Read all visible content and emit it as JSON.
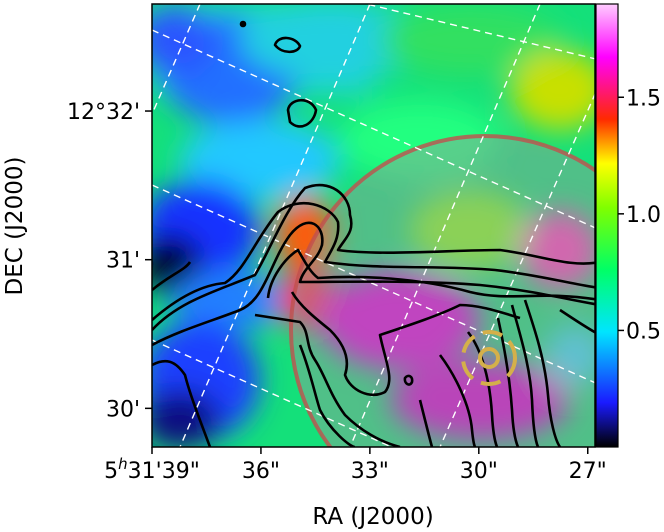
{
  "chart_data": {
    "type": "heatmap",
    "title": "",
    "xlabel": "RA (J2000)",
    "ylabel": "DEC (J2000)",
    "x_ticks": [
      {
        "label": "5h31'39\"",
        "value_s": 39
      },
      {
        "label": "36\"",
        "value_s": 36
      },
      {
        "label": "33\"",
        "value_s": 33
      },
      {
        "label": "30\"",
        "value_s": 30
      },
      {
        "label": "27\"",
        "value_s": 27
      }
    ],
    "y_ticks": [
      {
        "label": "12°32'",
        "value_arcmin": 32
      },
      {
        "label": "31'",
        "value_arcmin": 31
      },
      {
        "label": "30'",
        "value_arcmin": 30
      }
    ],
    "colorbar": {
      "range": [
        0.0,
        1.9
      ],
      "ticks": [
        {
          "label": "0.5",
          "value": 0.5
        },
        {
          "label": "1.0",
          "value": 1.0
        },
        {
          "label": "1.5",
          "value": 1.5
        }
      ],
      "colormap": [
        "#000000",
        "#1a1aff",
        "#00e5ff",
        "#00ff66",
        "#7fff00",
        "#ffff00",
        "#ff2a00",
        "#ff00ff",
        "#ffccff"
      ]
    },
    "overlays": {
      "large_circle_color": "#c0504d",
      "marker_color": "#d4b04a",
      "contour_color": "#000000",
      "grid_color": "#ffffff"
    }
  }
}
